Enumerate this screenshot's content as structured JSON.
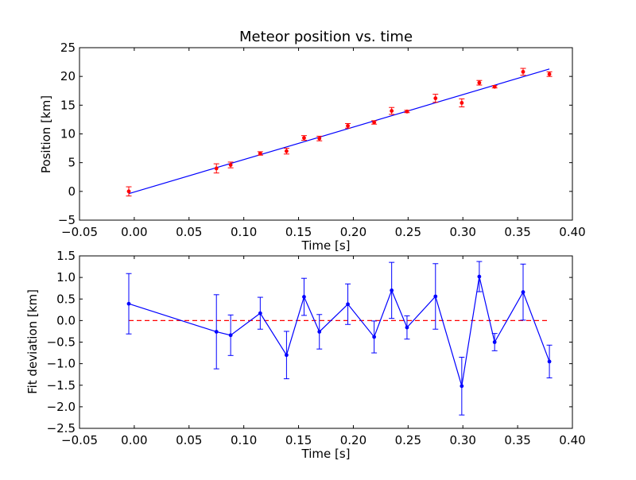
{
  "chart_data": [
    {
      "type": "scatter",
      "title": "Meteor position vs. time",
      "xlabel": "Time [s]",
      "ylabel": "Position [km]",
      "xlim": [
        -0.05,
        0.4
      ],
      "ylim": [
        -5,
        25
      ],
      "xticks": [
        "−0.05",
        "0.00",
        "0.05",
        "0.10",
        "0.15",
        "0.20",
        "0.25",
        "0.30",
        "0.35",
        "0.40"
      ],
      "yticks": [
        "−5",
        "0",
        "5",
        "10",
        "15",
        "20",
        "25"
      ],
      "grid": false,
      "series": [
        {
          "kind": "errorbar",
          "color": "#ff0000",
          "x": [
            -0.005,
            0.075,
            0.088,
            0.115,
            0.139,
            0.155,
            0.169,
            0.195,
            0.219,
            0.235,
            0.249,
            0.275,
            0.299,
            0.315,
            0.329,
            0.355,
            0.379
          ],
          "y": [
            0.0,
            4.0,
            4.6,
            6.6,
            7.0,
            9.3,
            9.2,
            11.4,
            12.0,
            14.0,
            13.9,
            16.2,
            15.4,
            18.9,
            18.2,
            20.8,
            20.4
          ],
          "err": [
            0.8,
            0.8,
            0.5,
            0.3,
            0.5,
            0.4,
            0.4,
            0.4,
            0.3,
            0.6,
            0.2,
            0.7,
            0.7,
            0.4,
            0.2,
            0.6,
            0.4
          ]
        },
        {
          "kind": "fit-line",
          "color": "#0000ff",
          "x": [
            -0.005,
            0.379
          ],
          "y": [
            -0.4,
            21.3
          ]
        }
      ]
    },
    {
      "type": "line",
      "xlabel": "Time [s]",
      "ylabel": "Fit deviation [km]",
      "xlim": [
        -0.05,
        0.4
      ],
      "ylim": [
        -2.5,
        1.5
      ],
      "xticks": [
        "−0.05",
        "0.00",
        "0.05",
        "0.10",
        "0.15",
        "0.20",
        "0.25",
        "0.30",
        "0.35",
        "0.40"
      ],
      "yticks": [
        "−2.5",
        "−2.0",
        "−1.5",
        "−1.0",
        "−0.5",
        "0.0",
        "0.5",
        "1.0",
        "1.5"
      ],
      "grid": false,
      "series": [
        {
          "kind": "errorbar-line",
          "color": "#0000ff",
          "x": [
            -0.005,
            0.075,
            0.088,
            0.115,
            0.139,
            0.155,
            0.169,
            0.195,
            0.219,
            0.235,
            0.249,
            0.275,
            0.299,
            0.315,
            0.329,
            0.355,
            0.379
          ],
          "y": [
            0.39,
            -0.26,
            -0.34,
            0.17,
            -0.8,
            0.55,
            -0.26,
            0.38,
            -0.38,
            0.7,
            -0.16,
            0.56,
            -1.52,
            1.02,
            -0.5,
            0.66,
            -0.95
          ],
          "err": [
            0.7,
            0.86,
            0.47,
            0.37,
            0.55,
            0.43,
            0.4,
            0.47,
            0.37,
            0.65,
            0.27,
            0.76,
            0.67,
            0.35,
            0.2,
            0.65,
            0.38
          ]
        },
        {
          "kind": "zero-line",
          "color": "#ff0000",
          "style": "dashed",
          "x": [
            -0.005,
            0.379
          ],
          "y": [
            0.0,
            0.0
          ]
        }
      ]
    }
  ]
}
